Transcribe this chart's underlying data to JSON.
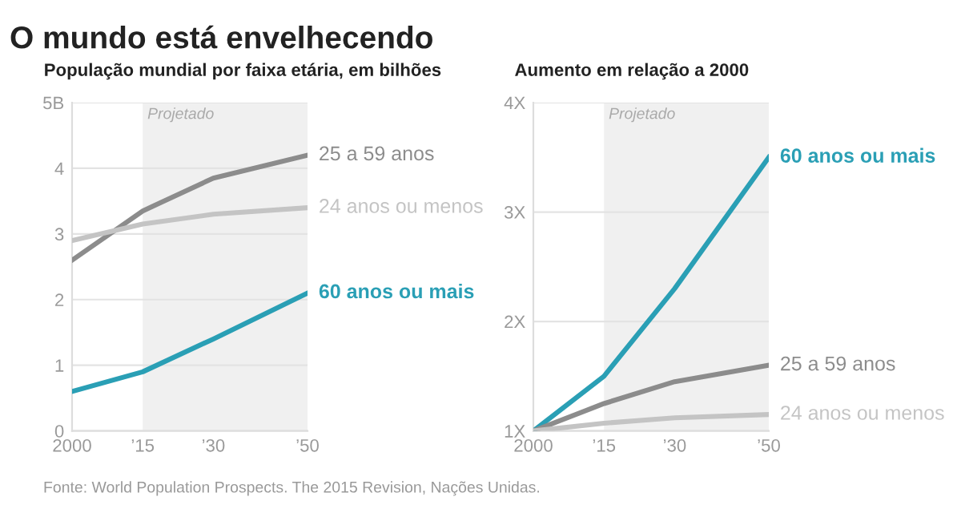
{
  "chart_data": [
    {
      "type": "line",
      "title": "O mundo está envelhecendo",
      "subtitle": "População mundial por faixa etária, em bilhões",
      "x": [
        2000,
        2015,
        2030,
        2050
      ],
      "series": [
        {
          "name": "25 a 59 anos",
          "color": "#8c8c8c",
          "values": [
            2.6,
            3.35,
            3.85,
            4.2
          ]
        },
        {
          "name": "24 anos ou menos",
          "color": "#c4c4c4",
          "values": [
            2.9,
            3.15,
            3.3,
            3.4
          ]
        },
        {
          "name": "60 anos ou mais",
          "color": "#2a9fb5",
          "values": [
            0.6,
            0.9,
            1.4,
            2.1
          ]
        }
      ],
      "xlim": [
        2000,
        2050
      ],
      "xticks": [
        2000,
        {
          "value": 2015,
          "label": "’15"
        },
        {
          "value": 2030,
          "label": "’30"
        },
        {
          "value": 2050,
          "label": "’50"
        }
      ],
      "ylim": [
        0,
        5
      ],
      "yticks": [
        0,
        1,
        2,
        3,
        4,
        {
          "value": 5,
          "label": "5B"
        }
      ],
      "grid": "y",
      "legend": false,
      "marker": "none",
      "line_style": "solid",
      "bands": [
        {
          "axis": "x",
          "from": 2015,
          "to": 2050,
          "label": "Projetado",
          "color": "#f0f0f0"
        }
      ],
      "annotations": [
        "Fonte: World Population Prospects. The 2015 Revision, Nações Unidas."
      ]
    },
    {
      "type": "line",
      "title": "Aumento em relação a 2000",
      "x": [
        2000,
        2015,
        2030,
        2050
      ],
      "series": [
        {
          "name": "60 anos ou mais",
          "color": "#2a9fb5",
          "values": [
            1,
            1.5,
            2.3,
            3.5
          ]
        },
        {
          "name": "25 a 59 anos",
          "color": "#8c8c8c",
          "values": [
            1,
            1.25,
            1.45,
            1.6
          ]
        },
        {
          "name": "24 anos ou menos",
          "color": "#c4c4c4",
          "values": [
            1,
            1.07,
            1.12,
            1.15
          ]
        }
      ],
      "xlim": [
        2000,
        2050
      ],
      "xticks": [
        2000,
        {
          "value": 2015,
          "label": "’15"
        },
        {
          "value": 2030,
          "label": "’30"
        },
        {
          "value": 2050,
          "label": "’50"
        }
      ],
      "ylim": [
        1,
        4
      ],
      "yticks": [
        {
          "value": 1,
          "label": "1X"
        },
        {
          "value": 2,
          "label": "2X"
        },
        {
          "value": 3,
          "label": "3X"
        },
        {
          "value": 4,
          "label": "4X"
        }
      ],
      "grid": "y",
      "legend": false,
      "marker": "none",
      "line_style": "solid",
      "bands": [
        {
          "axis": "x",
          "from": 2015,
          "to": 2050,
          "label": "Projetado",
          "color": "#f0f0f0"
        }
      ]
    }
  ]
}
